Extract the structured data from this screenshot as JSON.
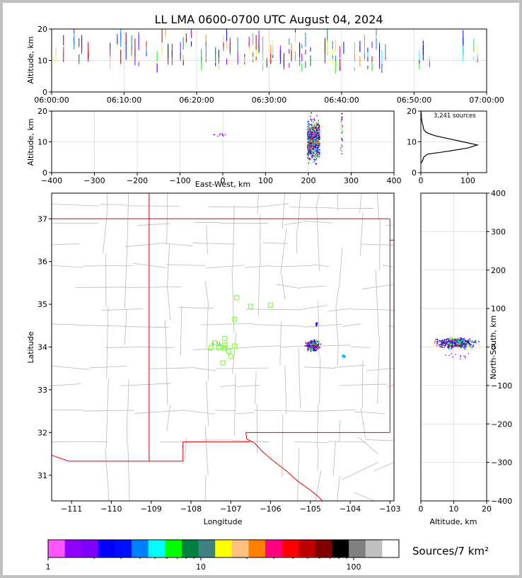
{
  "title": "LL LMA 0600-0700 UTC August 04, 2024",
  "colors": {
    "axis": "#000000",
    "grid": "#d8d8d8",
    "state_border": "#e00000",
    "county_border": "#b8b8b8",
    "station": "#80ff40"
  },
  "chart_data": [
    {
      "id": "time_altitude",
      "type": "scatter",
      "ylabel": "Altitude, km",
      "xlim": [
        "06:00:00",
        "07:00:00"
      ],
      "ylim": [
        0,
        20
      ],
      "x_ticks": [
        "06:00:00",
        "06:10:00",
        "06:20:00",
        "06:30:00",
        "06:40:00",
        "06:50:00",
        "07:00:00"
      ],
      "y_ticks": [
        "0",
        "10",
        "20"
      ],
      "activity_bands_minutes": [
        [
          0,
          36
        ],
        [
          37.5,
          46.5
        ],
        [
          50.5,
          52.5
        ],
        [
          56.5,
          59
        ]
      ],
      "altitude_range_km": [
        4,
        20
      ]
    },
    {
      "id": "eastwest_altitude",
      "type": "scatter",
      "xlabel": "East-West, km",
      "ylabel": "Altitude, km",
      "xlim": [
        -400,
        400
      ],
      "ylim": [
        0,
        20
      ],
      "x_ticks": [
        "−400",
        "−300",
        "−200",
        "−100",
        "0",
        "100",
        "200",
        "300",
        "400"
      ],
      "y_ticks": [
        "0",
        "10",
        "20"
      ],
      "main_cluster_km": [
        197,
        225
      ],
      "minor_clusters_km": [
        -25,
        277
      ]
    },
    {
      "id": "altitude_histogram",
      "type": "line",
      "annotation": "3,241 sources",
      "xlim": [
        0,
        140
      ],
      "ylim": [
        0,
        20
      ],
      "x_ticks": [
        "0",
        "100"
      ],
      "y_ticks": [
        "0",
        "10",
        "20"
      ],
      "profile": [
        [
          0,
          3
        ],
        [
          4,
          4
        ],
        [
          6,
          5
        ],
        [
          14,
          6
        ],
        [
          60,
          7
        ],
        [
          100,
          8
        ],
        [
          120,
          9
        ],
        [
          90,
          10
        ],
        [
          60,
          11
        ],
        [
          30,
          12
        ],
        [
          12,
          13
        ],
        [
          6,
          14
        ],
        [
          5,
          15
        ],
        [
          3,
          16
        ],
        [
          2,
          17
        ],
        [
          1,
          18
        ],
        [
          1,
          19
        ],
        [
          0,
          20
        ]
      ]
    },
    {
      "id": "plan_view",
      "type": "scatter",
      "xlabel": "Longitude",
      "ylabel": "Latitude",
      "xlim": [
        -111.5,
        -102.9
      ],
      "ylim": [
        30.4,
        37.6
      ],
      "x_ticks": [
        "−111",
        "−110",
        "−109",
        "−108",
        "−107",
        "−106",
        "−105",
        "−104",
        "−103"
      ],
      "y_ticks": [
        "31",
        "32",
        "33",
        "34",
        "35",
        "36",
        "37"
      ],
      "main_cluster_center": [
        -104.95,
        34.05
      ],
      "minor_cluster_center": [
        -104.18,
        33.8
      ],
      "stations": [
        [
          -106.85,
          35.15
        ],
        [
          -106.5,
          34.95
        ],
        [
          -106.0,
          34.98
        ],
        [
          -106.9,
          34.65
        ],
        [
          -107.15,
          34.2
        ],
        [
          -107.4,
          34.1
        ],
        [
          -107.5,
          33.98
        ],
        [
          -107.3,
          33.98
        ],
        [
          -107.15,
          33.98
        ],
        [
          -106.9,
          34.02
        ],
        [
          -107.15,
          34.05
        ],
        [
          -107.05,
          33.9
        ],
        [
          -107.0,
          33.78
        ],
        [
          -107.2,
          33.63
        ]
      ]
    },
    {
      "id": "altitude_northsouth",
      "type": "scatter",
      "xlabel": "Altitude, km",
      "ylabel": "North-South, km",
      "xlim": [
        0,
        20
      ],
      "ylim": [
        -400,
        400
      ],
      "x_ticks": [
        "0",
        "10",
        "20"
      ],
      "y_ticks": [
        "−400",
        "−300",
        "−200",
        "−100",
        "0",
        "100",
        "200",
        "300",
        "400"
      ],
      "cluster_ns_range_km": [
        -20,
        40
      ]
    }
  ],
  "colorbar": {
    "label": "Sources/7 km²",
    "tick_labels": [
      "1",
      "10",
      "100"
    ],
    "colors": [
      "#ff55ff",
      "#9000ff",
      "#8000ff",
      "#0000ff",
      "#0010ff",
      "#0080ff",
      "#00ffff",
      "#00ff00",
      "#008040",
      "#408080",
      "#ffff00",
      "#ffc080",
      "#ff8000",
      "#ff0080",
      "#ff0000",
      "#c00000",
      "#800000",
      "#000000",
      "#808080",
      "#c0c0c0",
      "#ffffff"
    ]
  }
}
